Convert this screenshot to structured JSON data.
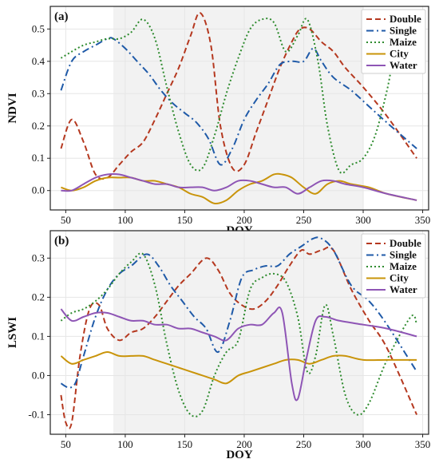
{
  "chart_data": [
    {
      "type": "line",
      "panel_label": "(a)",
      "xlabel": "DOY",
      "ylabel": "NDVI",
      "xlim": [
        37,
        355
      ],
      "ylim": [
        -0.06,
        0.57
      ],
      "xticks": [
        50,
        100,
        150,
        200,
        250,
        300,
        350
      ],
      "yticks": [
        0.0,
        0.1,
        0.2,
        0.3,
        0.4,
        0.5
      ],
      "shaded_x_range": [
        90,
        300
      ],
      "grid": true,
      "legend_position": "top-right",
      "series": [
        {
          "name": "Double",
          "color": "#b5381f",
          "dash": "dashed",
          "x": [
            46,
            55,
            65,
            75,
            85,
            95,
            105,
            115,
            125,
            135,
            145,
            155,
            163,
            172,
            180,
            190,
            200,
            210,
            220,
            230,
            240,
            247,
            255,
            265,
            275,
            285,
            300,
            320,
            345
          ],
          "y": [
            0.13,
            0.22,
            0.15,
            0.05,
            0.04,
            0.08,
            0.12,
            0.15,
            0.22,
            0.3,
            0.38,
            0.48,
            0.55,
            0.45,
            0.2,
            0.07,
            0.08,
            0.18,
            0.28,
            0.38,
            0.46,
            0.5,
            0.5,
            0.46,
            0.43,
            0.38,
            0.32,
            0.23,
            0.1
          ]
        },
        {
          "name": "Single",
          "color": "#1f5aa8",
          "dash": "dashdot",
          "x": [
            46,
            55,
            65,
            75,
            85,
            90,
            100,
            110,
            120,
            130,
            140,
            150,
            160,
            170,
            180,
            190,
            200,
            210,
            220,
            230,
            240,
            250,
            258,
            265,
            275,
            290,
            305,
            320,
            345
          ],
          "y": [
            0.31,
            0.4,
            0.43,
            0.45,
            0.47,
            0.47,
            0.44,
            0.4,
            0.36,
            0.31,
            0.27,
            0.24,
            0.21,
            0.16,
            0.08,
            0.13,
            0.22,
            0.28,
            0.33,
            0.39,
            0.4,
            0.4,
            0.44,
            0.4,
            0.35,
            0.31,
            0.26,
            0.21,
            0.13
          ]
        },
        {
          "name": "Maize",
          "color": "#2e8b2e",
          "dash": "dotted",
          "x": [
            46,
            55,
            65,
            75,
            85,
            95,
            105,
            115,
            125,
            135,
            145,
            155,
            165,
            175,
            185,
            195,
            205,
            215,
            225,
            235,
            245,
            253,
            262,
            270,
            280,
            290,
            300,
            310,
            320,
            325
          ],
          "y": [
            0.41,
            0.43,
            0.45,
            0.46,
            0.47,
            0.47,
            0.49,
            0.53,
            0.47,
            0.32,
            0.18,
            0.08,
            0.07,
            0.17,
            0.3,
            0.41,
            0.5,
            0.53,
            0.52,
            0.43,
            0.48,
            0.53,
            0.4,
            0.2,
            0.06,
            0.08,
            0.1,
            0.17,
            0.31,
            0.41
          ]
        },
        {
          "name": "City",
          "color": "#c9940a",
          "dash": "solid",
          "x": [
            46,
            55,
            65,
            75,
            85,
            95,
            105,
            115,
            125,
            135,
            145,
            155,
            165,
            175,
            185,
            195,
            205,
            215,
            225,
            232,
            240,
            250,
            260,
            270,
            280,
            290,
            305,
            320,
            345
          ],
          "y": [
            0.01,
            0.0,
            0.01,
            0.03,
            0.04,
            0.04,
            0.04,
            0.03,
            0.03,
            0.02,
            0.01,
            -0.01,
            -0.02,
            -0.04,
            -0.03,
            0.0,
            0.02,
            0.03,
            0.05,
            0.05,
            0.04,
            0.01,
            -0.01,
            0.02,
            0.03,
            0.02,
            0.01,
            -0.01,
            -0.03
          ]
        },
        {
          "name": "Water",
          "color": "#8e55b5",
          "dash": "solid",
          "x": [
            46,
            55,
            65,
            75,
            85,
            95,
            105,
            115,
            125,
            135,
            145,
            155,
            165,
            175,
            185,
            195,
            205,
            215,
            225,
            235,
            245,
            255,
            265,
            275,
            285,
            300,
            320,
            345
          ],
          "y": [
            0.0,
            0.0,
            0.02,
            0.04,
            0.05,
            0.05,
            0.04,
            0.03,
            0.02,
            0.02,
            0.01,
            0.01,
            0.01,
            0.0,
            0.01,
            0.03,
            0.03,
            0.02,
            0.01,
            0.01,
            -0.01,
            0.01,
            0.03,
            0.03,
            0.02,
            0.01,
            -0.01,
            -0.03
          ]
        }
      ]
    },
    {
      "type": "line",
      "panel_label": "(b)",
      "xlabel": "DOY",
      "ylabel": "LSWI",
      "xlim": [
        37,
        355
      ],
      "ylim": [
        -0.15,
        0.37
      ],
      "xticks": [
        50,
        100,
        150,
        200,
        250,
        300,
        350
      ],
      "yticks": [
        -0.1,
        0.0,
        0.1,
        0.2,
        0.3
      ],
      "shaded_x_range": [
        90,
        300
      ],
      "grid": true,
      "legend_position": "top-right",
      "series": [
        {
          "name": "Double",
          "color": "#b5381f",
          "dash": "dashed",
          "x": [
            46,
            50,
            55,
            62,
            70,
            78,
            85,
            95,
            105,
            115,
            125,
            135,
            145,
            155,
            168,
            178,
            188,
            198,
            208,
            218,
            228,
            238,
            248,
            255,
            265,
            275,
            290,
            305,
            320,
            345
          ],
          "y": [
            -0.05,
            -0.12,
            -0.12,
            0.05,
            0.17,
            0.18,
            0.12,
            0.09,
            0.11,
            0.12,
            0.15,
            0.19,
            0.23,
            0.26,
            0.3,
            0.27,
            0.21,
            0.18,
            0.17,
            0.19,
            0.23,
            0.28,
            0.32,
            0.31,
            0.32,
            0.32,
            0.22,
            0.14,
            0.07,
            -0.1
          ]
        },
        {
          "name": "Single",
          "color": "#1f5aa8",
          "dash": "dashdot",
          "x": [
            46,
            52,
            58,
            65,
            75,
            85,
            95,
            105,
            118,
            128,
            138,
            148,
            158,
            168,
            178,
            188,
            198,
            208,
            218,
            228,
            238,
            248,
            258,
            265,
            275,
            290,
            305,
            320,
            345
          ],
          "y": [
            -0.02,
            -0.03,
            -0.02,
            0.05,
            0.15,
            0.22,
            0.26,
            0.28,
            0.31,
            0.28,
            0.23,
            0.19,
            0.15,
            0.12,
            0.06,
            0.14,
            0.25,
            0.27,
            0.28,
            0.28,
            0.31,
            0.33,
            0.35,
            0.35,
            0.32,
            0.23,
            0.19,
            0.13,
            0.01
          ]
        },
        {
          "name": "Maize",
          "color": "#2e8b2e",
          "dash": "dotted",
          "x": [
            46,
            55,
            65,
            75,
            85,
            95,
            105,
            115,
            125,
            135,
            145,
            155,
            165,
            175,
            185,
            195,
            205,
            215,
            225,
            235,
            245,
            253,
            260,
            268,
            275,
            285,
            295,
            305,
            320,
            340,
            345
          ],
          "y": [
            0.14,
            0.16,
            0.17,
            0.19,
            0.22,
            0.26,
            0.29,
            0.31,
            0.23,
            0.08,
            -0.04,
            -0.1,
            -0.09,
            0.0,
            0.06,
            0.09,
            0.22,
            0.25,
            0.26,
            0.24,
            0.15,
            0.01,
            0.05,
            0.18,
            0.1,
            -0.05,
            -0.1,
            -0.07,
            0.04,
            0.15,
            0.13
          ]
        },
        {
          "name": "City",
          "color": "#c9940a",
          "dash": "solid",
          "x": [
            46,
            55,
            65,
            75,
            85,
            95,
            105,
            115,
            125,
            135,
            145,
            155,
            165,
            175,
            185,
            195,
            205,
            215,
            225,
            235,
            245,
            255,
            265,
            275,
            285,
            300,
            320,
            345
          ],
          "y": [
            0.05,
            0.03,
            0.04,
            0.05,
            0.06,
            0.05,
            0.05,
            0.05,
            0.04,
            0.03,
            0.02,
            0.01,
            0.0,
            -0.01,
            -0.02,
            0.0,
            0.01,
            0.02,
            0.03,
            0.04,
            0.04,
            0.03,
            0.04,
            0.05,
            0.05,
            0.04,
            0.04,
            0.04
          ]
        },
        {
          "name": "Water",
          "color": "#8e55b5",
          "dash": "solid",
          "x": [
            46,
            55,
            65,
            75,
            85,
            95,
            105,
            115,
            125,
            135,
            145,
            155,
            165,
            175,
            185,
            195,
            205,
            215,
            225,
            232,
            240,
            245,
            252,
            260,
            268,
            280,
            300,
            320,
            345
          ],
          "y": [
            0.17,
            0.14,
            0.15,
            0.16,
            0.16,
            0.15,
            0.14,
            0.14,
            0.13,
            0.13,
            0.12,
            0.12,
            0.11,
            0.1,
            0.09,
            0.12,
            0.13,
            0.13,
            0.16,
            0.16,
            -0.02,
            -0.06,
            0.04,
            0.14,
            0.15,
            0.14,
            0.13,
            0.12,
            0.1
          ]
        }
      ]
    }
  ]
}
